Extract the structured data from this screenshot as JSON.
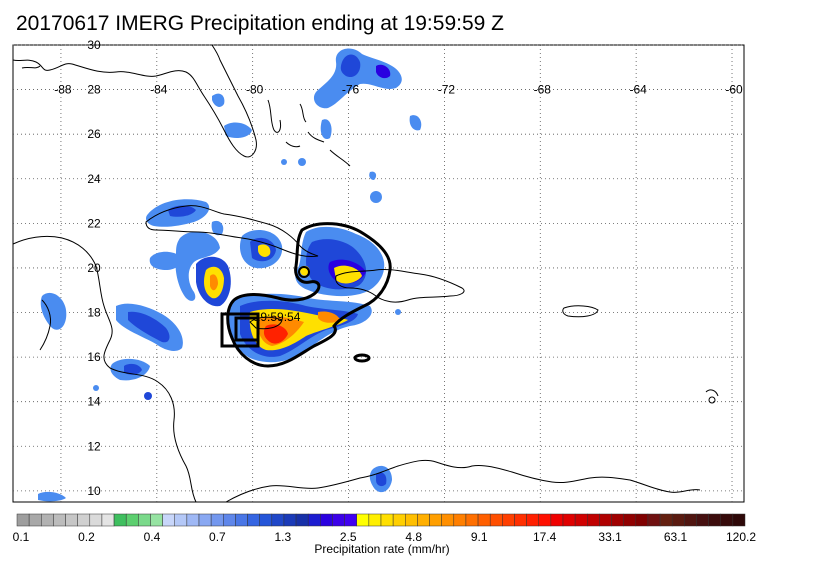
{
  "title": "20170617 IMERG Precipitation ending at 19:59:59 Z",
  "map": {
    "lon_range": [
      -90,
      -59.5
    ],
    "lat_range": [
      9.5,
      30
    ],
    "lon_ticks": [
      -88,
      -84,
      -80,
      -76,
      -72,
      -68,
      -64,
      -60
    ],
    "lat_ticks": [
      30,
      28,
      26,
      24,
      22,
      20,
      18,
      16,
      14,
      12,
      10
    ],
    "lon_tick_labels": [
      "-88",
      "-84",
      "-80",
      "-76",
      "-72",
      "-68",
      "-64",
      "-60"
    ],
    "lat_tick_labels": [
      "30",
      "28",
      "26",
      "24",
      "22",
      "20",
      "18",
      "16",
      "14",
      "12",
      "10"
    ],
    "time_annotation": "19:59:54",
    "annotation_lonlat": [
      -80.0,
      17.8
    ]
  },
  "colorbar": {
    "title": "Precipitation rate (mm/hr)",
    "tick_labels": [
      "0.1",
      "0.2",
      "0.4",
      "0.7",
      "1.3",
      "2.5",
      "4.8",
      "9.1",
      "17.4",
      "33.1",
      "63.1",
      "120.2"
    ],
    "colors": [
      "#9e9e9e",
      "#a8a8a8",
      "#b2b2b2",
      "#bcbcbc",
      "#c6c6c6",
      "#d0d0d0",
      "#dadada",
      "#e4e4e4",
      "#3fbf5f",
      "#5ccf6f",
      "#7ad98a",
      "#96e3a2",
      "#c8d6fa",
      "#b4c8f7",
      "#9fb8f5",
      "#89a8f2",
      "#7397ee",
      "#5e86ea",
      "#4976e6",
      "#3565e2",
      "#2555d8",
      "#1f47c8",
      "#1a3ab8",
      "#1730a8",
      "#1c1cd0",
      "#2a00e0",
      "#3b00e8",
      "#4000f0",
      "#ffff00",
      "#ffef00",
      "#ffdf00",
      "#ffcf00",
      "#ffbf00",
      "#ffaf00",
      "#ff9f00",
      "#ff8f00",
      "#ff7f00",
      "#ff6f00",
      "#ff5f00",
      "#ff4f00",
      "#ff3f00",
      "#ff2f00",
      "#ff1f00",
      "#ff0f00",
      "#f00000",
      "#e00000",
      "#d00000",
      "#c00000",
      "#b00000",
      "#a00000",
      "#900000",
      "#800000",
      "#701010",
      "#642010",
      "#5a1a10",
      "#501510",
      "#461010",
      "#3c0c0c",
      "#350a0a",
      "#2e0808"
    ]
  },
  "colors": {
    "light_blue": "#4a8cf0",
    "mid_blue": "#1f47d8",
    "deep_blue": "#2200e0",
    "yellow": "#ffe000",
    "orange": "#ff8a00",
    "red": "#ff2200",
    "coast": "#000000",
    "storm_outline": "#000000"
  }
}
